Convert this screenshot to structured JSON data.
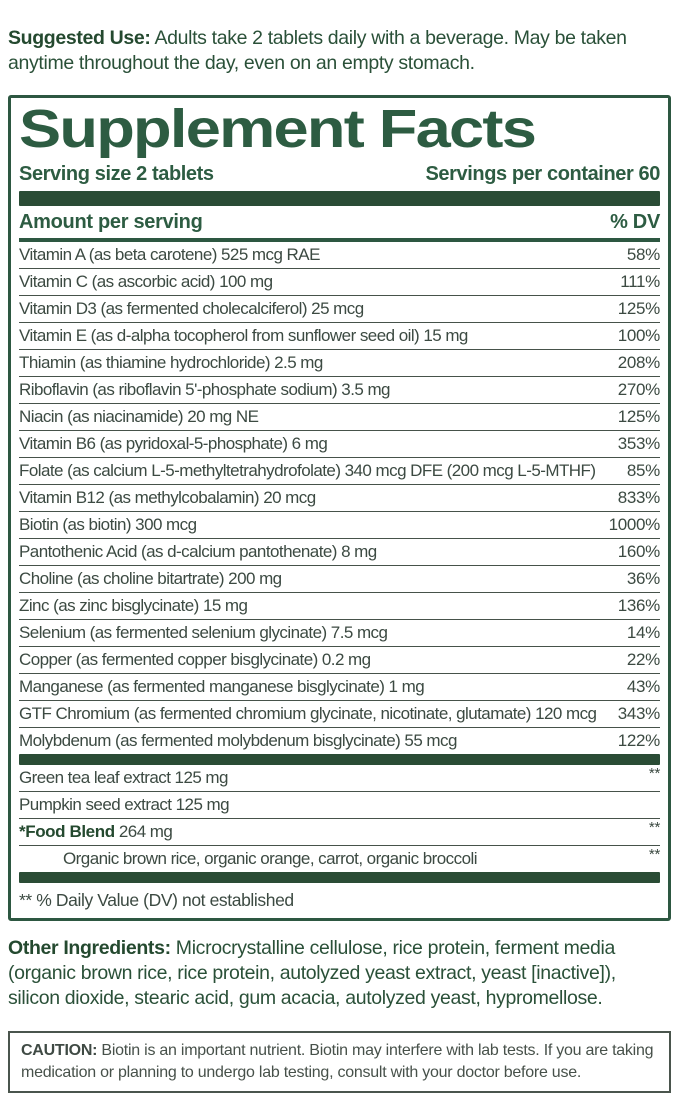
{
  "colors": {
    "accent_green": "#2d5c42",
    "bar_green": "#2a4c35",
    "row_text": "#3c4a42",
    "caution_text": "#47514a",
    "background": "#ffffff"
  },
  "suggested_use": {
    "label": "Suggested Use:",
    "text": "Adults take 2 tablets daily with a beverage. May be taken anytime throughout the day, even on an empty stomach."
  },
  "panel": {
    "title": "Supplement Facts",
    "serving_size": "Serving size 2 tablets",
    "servings_per_container": "Servings per container 60",
    "header": {
      "amount": "Amount per serving",
      "dv": "% DV"
    },
    "rows": [
      {
        "name": "Vitamin A (as beta carotene) 525 mcg RAE",
        "dv": "58%"
      },
      {
        "name": "Vitamin C (as ascorbic acid) 100 mg",
        "dv": "111%"
      },
      {
        "name": "Vitamin D3 (as fermented cholecalciferol) 25 mcg",
        "dv": "125%"
      },
      {
        "name": "Vitamin E (as d-alpha tocopherol from sunflower seed oil) 15 mg",
        "dv": "100%"
      },
      {
        "name": "Thiamin (as thiamine hydrochloride) 2.5 mg",
        "dv": "208%"
      },
      {
        "name": "Riboflavin (as riboflavin 5'-phosphate sodium) 3.5 mg",
        "dv": "270%"
      },
      {
        "name": "Niacin (as niacinamide) 20 mg NE",
        "dv": "125%"
      },
      {
        "name": "Vitamin B6 (as pyridoxal-5-phosphate) 6 mg",
        "dv": "353%"
      },
      {
        "name": "Folate (as calcium L-5-methyltetrahydrofolate) 340 mcg DFE (200 mcg L-5-MTHF)",
        "dv": "85%"
      },
      {
        "name": "Vitamin B12 (as methylcobalamin) 20 mcg",
        "dv": "833%"
      },
      {
        "name": "Biotin (as biotin) 300 mcg",
        "dv": "1000%"
      },
      {
        "name": "Pantothenic Acid (as d-calcium pantothenate) 8 mg",
        "dv": "160%"
      },
      {
        "name": "Choline (as choline bitartrate) 200 mg",
        "dv": "36%"
      },
      {
        "name": "Zinc (as zinc bisglycinate) 15 mg",
        "dv": "136%"
      },
      {
        "name": "Selenium (as fermented selenium glycinate) 7.5 mcg",
        "dv": "14%"
      },
      {
        "name": "Copper (as fermented copper bisglycinate) 0.2 mg",
        "dv": "22%"
      },
      {
        "name": "Manganese (as fermented manganese bisglycinate) 1 mg",
        "dv": "43%"
      },
      {
        "name": "GTF Chromium (as fermented chromium glycinate, nicotinate, glutamate) 120 mcg",
        "dv": "343%"
      },
      {
        "name": "Molybdenum (as fermented molybdenum bisglycinate) 55 mcg",
        "dv": "122%"
      }
    ],
    "extra_rows": [
      {
        "name": "Green tea leaf extract 125 mg",
        "dv": "**"
      },
      {
        "name": "Pumpkin seed extract 125 mg",
        "dv": ""
      }
    ],
    "food_blend": {
      "label": "*Food Blend",
      "amount": "264 mg",
      "dv": "**",
      "sub": "Organic brown rice, organic orange, carrot, organic broccoli",
      "sub_dv": "**"
    },
    "footnote": "** % Daily Value (DV) not established"
  },
  "other_ingredients": {
    "label": "Other Ingredients:",
    "text": "Microcrystalline cellulose, rice protein, ferment media (organic brown rice, rice protein, autolyzed yeast extract, yeast [inactive]), silicon dioxide, stearic acid, gum acacia, autolyzed yeast, hypromellose."
  },
  "caution": {
    "label": "CAUTION:",
    "text": "Biotin is an important nutrient. Biotin may interfere with lab tests. If you are taking medication or planning to undergo lab testing, consult with your doctor before use."
  }
}
